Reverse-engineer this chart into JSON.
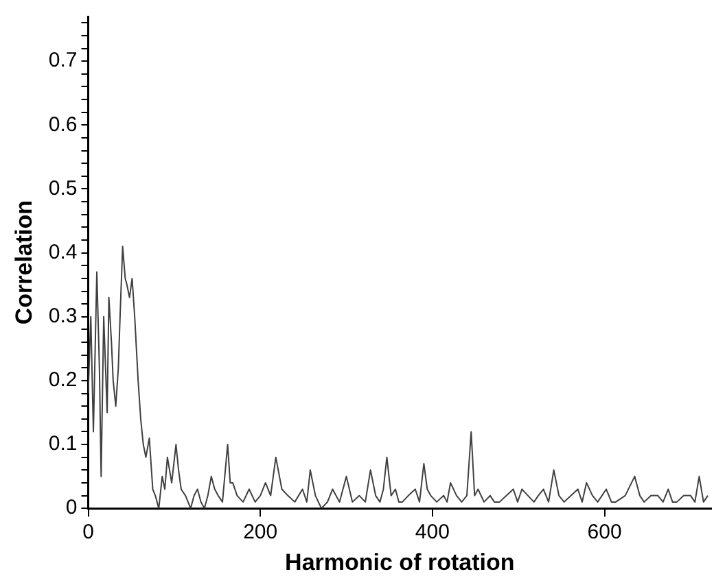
{
  "chart_data": {
    "type": "line",
    "xlabel": "Harmonic of rotation",
    "ylabel": "Correlation",
    "xlim": [
      0,
      724
    ],
    "ylim": [
      0,
      0.77
    ],
    "xticks": [
      0,
      200,
      400,
      600
    ],
    "yticks": [
      0,
      {
        "value": 0.02,
        "label": null
      },
      {
        "value": 0.04,
        "label": null
      },
      {
        "value": 0.06,
        "label": null
      },
      {
        "value": 0.08,
        "label": null
      },
      0.1,
      {
        "value": 0.12,
        "label": null
      },
      {
        "value": 0.14,
        "label": null
      },
      {
        "value": 0.16,
        "label": null
      },
      {
        "value": 0.18,
        "label": null
      },
      0.2,
      {
        "value": 0.22,
        "label": null
      },
      {
        "value": 0.24,
        "label": null
      },
      {
        "value": 0.26,
        "label": null
      },
      {
        "value": 0.28,
        "label": null
      },
      0.3,
      {
        "value": 0.32,
        "label": null
      },
      {
        "value": 0.34,
        "label": null
      },
      {
        "value": 0.36,
        "label": null
      },
      {
        "value": 0.38,
        "label": null
      },
      0.4,
      {
        "value": 0.42,
        "label": null
      },
      {
        "value": 0.44,
        "label": null
      },
      {
        "value": 0.46,
        "label": null
      },
      {
        "value": 0.48,
        "label": null
      },
      0.5,
      {
        "value": 0.52,
        "label": null
      },
      {
        "value": 0.54,
        "label": null
      },
      {
        "value": 0.56,
        "label": null
      },
      {
        "value": 0.58,
        "label": null
      },
      0.6,
      {
        "value": 0.62,
        "label": null
      },
      {
        "value": 0.64,
        "label": null
      },
      {
        "value": 0.66,
        "label": null
      },
      {
        "value": 0.68,
        "label": null
      },
      0.7,
      {
        "value": 0.72,
        "label": null
      },
      {
        "value": 0.74,
        "label": null
      },
      {
        "value": 0.76,
        "label": null
      }
    ],
    "grid": false,
    "legend": false,
    "marker": "none",
    "line_style": "solid",
    "series": [
      {
        "color": "#404040",
        "x": [
          0,
          3,
          6,
          10,
          13,
          15,
          18,
          22,
          24,
          27,
          29,
          32,
          35,
          37,
          40,
          43,
          45,
          48,
          51,
          54,
          58,
          61,
          64,
          67,
          71,
          75,
          78,
          82,
          86,
          89,
          92,
          97,
          102,
          105,
          108,
          113,
          119,
          123,
          127,
          131,
          135,
          139,
          143,
          147,
          151,
          156,
          162,
          165,
          168,
          173,
          180,
          187,
          194,
          200,
          206,
          212,
          218,
          225,
          232,
          240,
          249,
          254,
          258,
          264,
          271,
          278,
          284,
          292,
          300,
          307,
          315,
          322,
          328,
          334,
          339,
          343,
          347,
          352,
          357,
          361,
          365,
          372,
          380,
          385,
          390,
          394,
          398,
          405,
          413,
          417,
          421,
          428,
          434,
          440,
          445,
          449,
          453,
          460,
          467,
          472,
          478,
          486,
          494,
          499,
          504,
          511,
          518,
          523,
          529,
          535,
          541,
          547,
          553,
          561,
          569,
          574,
          579,
          586,
          592,
          597,
          602,
          608,
          613,
          624,
          635,
          641,
          646,
          654,
          662,
          668,
          674,
          679,
          684,
          692,
          700,
          705,
          710,
          715,
          720
        ],
        "values": [
          0.18,
          0.3,
          0.12,
          0.37,
          0.22,
          0.05,
          0.3,
          0.15,
          0.33,
          0.26,
          0.2,
          0.16,
          0.22,
          0.3,
          0.41,
          0.36,
          0.35,
          0.33,
          0.36,
          0.3,
          0.2,
          0.14,
          0.1,
          0.08,
          0.11,
          0.03,
          0.02,
          0,
          0.05,
          0.03,
          0.08,
          0.04,
          0.1,
          0.06,
          0.03,
          0.02,
          0,
          0.02,
          0.03,
          0.01,
          0,
          0.02,
          0.05,
          0.03,
          0.02,
          0.01,
          0.1,
          0.04,
          0.04,
          0.02,
          0.01,
          0.03,
          0.01,
          0.02,
          0.04,
          0.02,
          0.08,
          0.03,
          0.02,
          0.01,
          0.03,
          0.01,
          0.06,
          0.02,
          0,
          0.01,
          0.03,
          0.01,
          0.05,
          0.01,
          0.02,
          0.01,
          0.06,
          0.02,
          0.01,
          0.03,
          0.08,
          0.02,
          0.03,
          0.01,
          0.01,
          0.02,
          0.03,
          0.01,
          0.07,
          0.03,
          0.02,
          0.01,
          0.02,
          0.01,
          0.04,
          0.02,
          0.01,
          0.02,
          0.12,
          0.02,
          0.03,
          0.01,
          0.02,
          0.01,
          0.01,
          0.02,
          0.03,
          0.01,
          0.03,
          0.02,
          0.01,
          0.02,
          0.03,
          0.01,
          0.06,
          0.02,
          0.01,
          0.02,
          0.03,
          0.01,
          0.04,
          0.02,
          0.01,
          0.02,
          0.03,
          0.01,
          0.01,
          0.02,
          0.05,
          0.02,
          0.01,
          0.02,
          0.02,
          0.01,
          0.03,
          0.01,
          0.01,
          0.02,
          0.02,
          0.01,
          0.05,
          0.01,
          0.02
        ]
      }
    ]
  }
}
